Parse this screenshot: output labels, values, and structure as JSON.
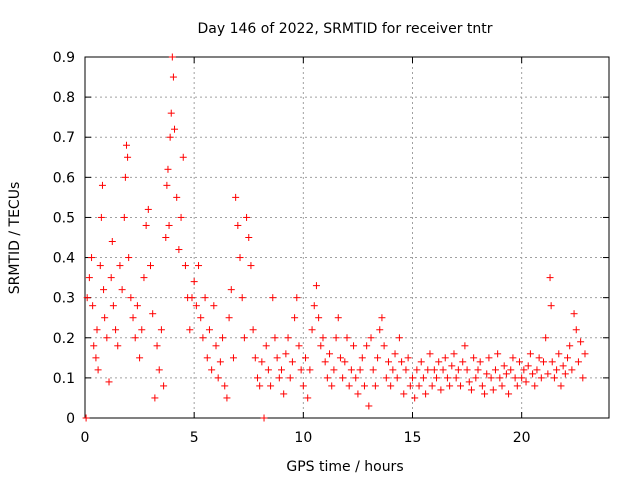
{
  "chart_data": {
    "type": "scatter",
    "title": "Day 146 of 2022, SRMTID for receiver tntr",
    "xlabel": "GPS time / hours",
    "ylabel": "SRMTID / TECUs",
    "xlim": [
      0,
      24
    ],
    "ylim": [
      0,
      0.9
    ],
    "xticks": [
      "0",
      "5",
      "10",
      "15",
      "20"
    ],
    "yticks": [
      "0",
      "0.1",
      "0.2",
      "0.3",
      "0.4",
      "0.5",
      "0.6",
      "0.7",
      "0.8",
      "0.9"
    ],
    "grid": true,
    "marker": "+",
    "color": "#ff0000",
    "series": [
      {
        "name": "SRMTID",
        "points": [
          [
            0.05,
            0.0
          ],
          [
            0.1,
            0.3
          ],
          [
            0.2,
            0.35
          ],
          [
            0.3,
            0.4
          ],
          [
            0.35,
            0.28
          ],
          [
            0.4,
            0.18
          ],
          [
            0.5,
            0.15
          ],
          [
            0.55,
            0.22
          ],
          [
            0.6,
            0.12
          ],
          [
            0.7,
            0.38
          ],
          [
            0.75,
            0.5
          ],
          [
            0.8,
            0.58
          ],
          [
            0.85,
            0.32
          ],
          [
            0.9,
            0.25
          ],
          [
            1.0,
            0.2
          ],
          [
            1.1,
            0.09
          ],
          [
            1.2,
            0.35
          ],
          [
            1.25,
            0.44
          ],
          [
            1.3,
            0.28
          ],
          [
            1.4,
            0.22
          ],
          [
            1.5,
            0.18
          ],
          [
            1.6,
            0.38
          ],
          [
            1.7,
            0.32
          ],
          [
            1.8,
            0.5
          ],
          [
            1.85,
            0.6
          ],
          [
            1.9,
            0.68
          ],
          [
            1.95,
            0.65
          ],
          [
            2.0,
            0.4
          ],
          [
            2.1,
            0.3
          ],
          [
            2.2,
            0.25
          ],
          [
            2.3,
            0.2
          ],
          [
            2.4,
            0.28
          ],
          [
            2.5,
            0.15
          ],
          [
            2.6,
            0.22
          ],
          [
            2.7,
            0.35
          ],
          [
            2.8,
            0.48
          ],
          [
            2.9,
            0.52
          ],
          [
            3.0,
            0.38
          ],
          [
            3.1,
            0.26
          ],
          [
            3.2,
            0.05
          ],
          [
            3.3,
            0.18
          ],
          [
            3.4,
            0.12
          ],
          [
            3.5,
            0.22
          ],
          [
            3.6,
            0.08
          ],
          [
            3.7,
            0.45
          ],
          [
            3.75,
            0.58
          ],
          [
            3.8,
            0.62
          ],
          [
            3.85,
            0.48
          ],
          [
            3.9,
            0.7
          ],
          [
            3.95,
            0.76
          ],
          [
            4.0,
            0.9
          ],
          [
            4.05,
            0.85
          ],
          [
            4.1,
            0.72
          ],
          [
            4.2,
            0.55
          ],
          [
            4.3,
            0.42
          ],
          [
            4.4,
            0.5
          ],
          [
            4.5,
            0.65
          ],
          [
            4.6,
            0.38
          ],
          [
            4.7,
            0.3
          ],
          [
            4.8,
            0.22
          ],
          [
            4.9,
            0.3
          ],
          [
            5.0,
            0.34
          ],
          [
            5.1,
            0.28
          ],
          [
            5.2,
            0.38
          ],
          [
            5.3,
            0.25
          ],
          [
            5.4,
            0.2
          ],
          [
            5.5,
            0.3
          ],
          [
            5.6,
            0.15
          ],
          [
            5.7,
            0.22
          ],
          [
            5.8,
            0.12
          ],
          [
            5.9,
            0.28
          ],
          [
            6.0,
            0.18
          ],
          [
            6.1,
            0.1
          ],
          [
            6.2,
            0.14
          ],
          [
            6.3,
            0.2
          ],
          [
            6.4,
            0.08
          ],
          [
            6.5,
            0.05
          ],
          [
            6.6,
            0.25
          ],
          [
            6.7,
            0.32
          ],
          [
            6.8,
            0.15
          ],
          [
            6.9,
            0.55
          ],
          [
            7.0,
            0.48
          ],
          [
            7.1,
            0.4
          ],
          [
            7.2,
            0.3
          ],
          [
            7.3,
            0.2
          ],
          [
            7.4,
            0.5
          ],
          [
            7.5,
            0.45
          ],
          [
            7.6,
            0.38
          ],
          [
            7.7,
            0.22
          ],
          [
            7.8,
            0.15
          ],
          [
            7.9,
            0.1
          ],
          [
            8.0,
            0.08
          ],
          [
            8.1,
            0.14
          ],
          [
            8.2,
            0.0
          ],
          [
            8.3,
            0.18
          ],
          [
            8.4,
            0.12
          ],
          [
            8.5,
            0.08
          ],
          [
            8.6,
            0.3
          ],
          [
            8.7,
            0.2
          ],
          [
            8.8,
            0.15
          ],
          [
            8.9,
            0.1
          ],
          [
            9.0,
            0.12
          ],
          [
            9.1,
            0.06
          ],
          [
            9.2,
            0.16
          ],
          [
            9.3,
            0.2
          ],
          [
            9.4,
            0.1
          ],
          [
            9.5,
            0.14
          ],
          [
            9.6,
            0.25
          ],
          [
            9.7,
            0.3
          ],
          [
            9.8,
            0.18
          ],
          [
            9.9,
            0.12
          ],
          [
            10.0,
            0.08
          ],
          [
            10.1,
            0.15
          ],
          [
            10.2,
            0.05
          ],
          [
            10.3,
            0.12
          ],
          [
            10.4,
            0.22
          ],
          [
            10.5,
            0.28
          ],
          [
            10.6,
            0.33
          ],
          [
            10.7,
            0.25
          ],
          [
            10.8,
            0.18
          ],
          [
            10.9,
            0.2
          ],
          [
            11.0,
            0.14
          ],
          [
            11.1,
            0.1
          ],
          [
            11.2,
            0.16
          ],
          [
            11.3,
            0.08
          ],
          [
            11.4,
            0.12
          ],
          [
            11.5,
            0.2
          ],
          [
            11.6,
            0.25
          ],
          [
            11.7,
            0.15
          ],
          [
            11.8,
            0.1
          ],
          [
            11.9,
            0.14
          ],
          [
            12.0,
            0.2
          ],
          [
            12.1,
            0.08
          ],
          [
            12.2,
            0.12
          ],
          [
            12.3,
            0.18
          ],
          [
            12.4,
            0.1
          ],
          [
            12.5,
            0.06
          ],
          [
            12.6,
            0.12
          ],
          [
            12.7,
            0.15
          ],
          [
            12.8,
            0.08
          ],
          [
            12.9,
            0.18
          ],
          [
            13.0,
            0.03
          ],
          [
            13.1,
            0.2
          ],
          [
            13.2,
            0.12
          ],
          [
            13.3,
            0.08
          ],
          [
            13.4,
            0.15
          ],
          [
            13.5,
            0.22
          ],
          [
            13.6,
            0.25
          ],
          [
            13.7,
            0.18
          ],
          [
            13.8,
            0.1
          ],
          [
            13.9,
            0.14
          ],
          [
            14.0,
            0.08
          ],
          [
            14.1,
            0.12
          ],
          [
            14.2,
            0.16
          ],
          [
            14.3,
            0.1
          ],
          [
            14.4,
            0.2
          ],
          [
            14.5,
            0.14
          ],
          [
            14.6,
            0.06
          ],
          [
            14.7,
            0.12
          ],
          [
            14.8,
            0.15
          ],
          [
            14.9,
            0.08
          ],
          [
            15.0,
            0.1
          ],
          [
            15.1,
            0.05
          ],
          [
            15.2,
            0.12
          ],
          [
            15.3,
            0.08
          ],
          [
            15.4,
            0.14
          ],
          [
            15.5,
            0.1
          ],
          [
            15.6,
            0.06
          ],
          [
            15.7,
            0.12
          ],
          [
            15.8,
            0.16
          ],
          [
            15.9,
            0.08
          ],
          [
            16.0,
            0.12
          ],
          [
            16.1,
            0.1
          ],
          [
            16.2,
            0.14
          ],
          [
            16.3,
            0.07
          ],
          [
            16.4,
            0.12
          ],
          [
            16.5,
            0.15
          ],
          [
            16.6,
            0.1
          ],
          [
            16.7,
            0.08
          ],
          [
            16.8,
            0.13
          ],
          [
            16.9,
            0.16
          ],
          [
            17.0,
            0.1
          ],
          [
            17.1,
            0.12
          ],
          [
            17.2,
            0.08
          ],
          [
            17.3,
            0.14
          ],
          [
            17.4,
            0.18
          ],
          [
            17.5,
            0.12
          ],
          [
            17.6,
            0.09
          ],
          [
            17.7,
            0.07
          ],
          [
            17.8,
            0.15
          ],
          [
            17.9,
            0.1
          ],
          [
            18.0,
            0.12
          ],
          [
            18.1,
            0.14
          ],
          [
            18.2,
            0.08
          ],
          [
            18.3,
            0.06
          ],
          [
            18.4,
            0.11
          ],
          [
            18.5,
            0.15
          ],
          [
            18.6,
            0.1
          ],
          [
            18.7,
            0.07
          ],
          [
            18.8,
            0.12
          ],
          [
            18.9,
            0.16
          ],
          [
            19.0,
            0.1
          ],
          [
            19.1,
            0.08
          ],
          [
            19.2,
            0.13
          ],
          [
            19.3,
            0.11
          ],
          [
            19.4,
            0.06
          ],
          [
            19.5,
            0.12
          ],
          [
            19.6,
            0.15
          ],
          [
            19.7,
            0.1
          ],
          [
            19.8,
            0.08
          ],
          [
            19.9,
            0.14
          ],
          [
            20.0,
            0.1
          ],
          [
            20.1,
            0.12
          ],
          [
            20.2,
            0.09
          ],
          [
            20.3,
            0.13
          ],
          [
            20.4,
            0.16
          ],
          [
            20.5,
            0.11
          ],
          [
            20.6,
            0.08
          ],
          [
            20.7,
            0.12
          ],
          [
            20.8,
            0.15
          ],
          [
            20.9,
            0.1
          ],
          [
            21.0,
            0.14
          ],
          [
            21.1,
            0.2
          ],
          [
            21.2,
            0.11
          ],
          [
            21.3,
            0.35
          ],
          [
            21.35,
            0.28
          ],
          [
            21.4,
            0.14
          ],
          [
            21.5,
            0.1
          ],
          [
            21.6,
            0.12
          ],
          [
            21.7,
            0.16
          ],
          [
            21.8,
            0.08
          ],
          [
            21.9,
            0.13
          ],
          [
            22.0,
            0.11
          ],
          [
            22.1,
            0.15
          ],
          [
            22.2,
            0.18
          ],
          [
            22.3,
            0.12
          ],
          [
            22.4,
            0.26
          ],
          [
            22.5,
            0.22
          ],
          [
            22.6,
            0.14
          ],
          [
            22.7,
            0.19
          ],
          [
            22.8,
            0.1
          ],
          [
            22.9,
            0.16
          ]
        ]
      }
    ]
  }
}
